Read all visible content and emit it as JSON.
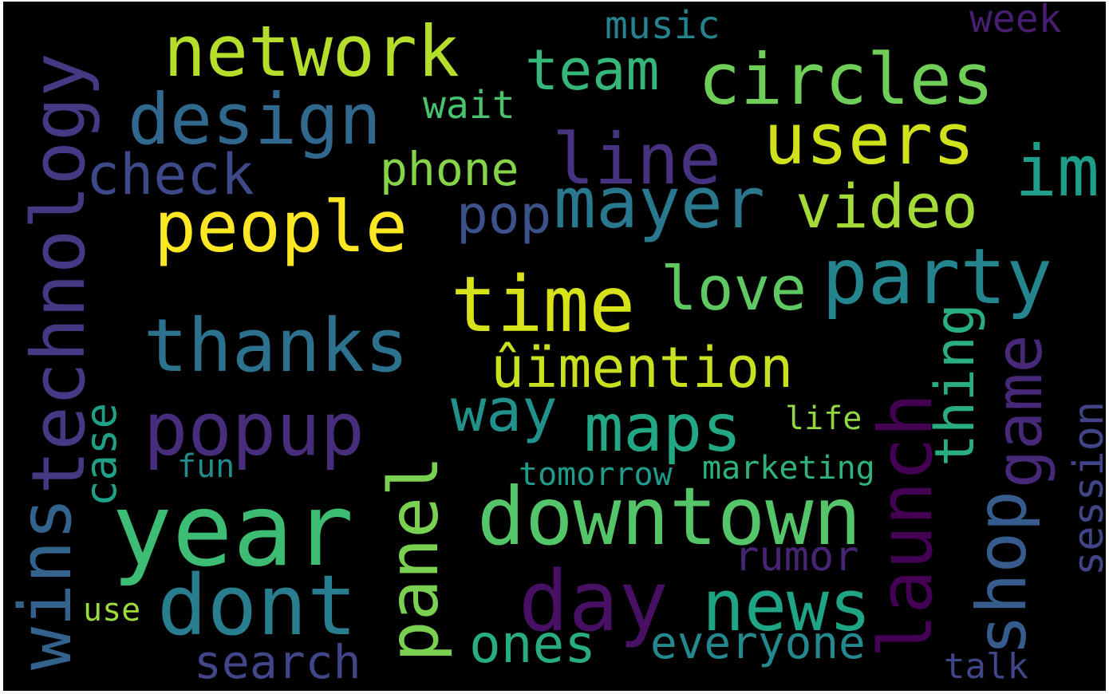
{
  "word_cloud": {
    "background_color": "#000000",
    "colormap": "viridis",
    "words": [
      {
        "text": "technology",
        "color": "#443983"
      },
      {
        "text": "network",
        "color": "#b5de2b"
      },
      {
        "text": "design",
        "color": "#31688e"
      },
      {
        "text": "circles",
        "color": "#6ece58"
      },
      {
        "text": "team",
        "color": "#35b779"
      },
      {
        "text": "music",
        "color": "#26828e"
      },
      {
        "text": "week",
        "color": "#481f70"
      },
      {
        "text": "users",
        "color": "#d0e11c"
      },
      {
        "text": "line",
        "color": "#46327e"
      },
      {
        "text": "im",
        "color": "#1f9e89"
      },
      {
        "text": "check",
        "color": "#3e4989"
      },
      {
        "text": "phone",
        "color": "#86d549"
      },
      {
        "text": "wait",
        "color": "#4ac16d"
      },
      {
        "text": "people",
        "color": "#fde725"
      },
      {
        "text": "mayer",
        "color": "#2a788e"
      },
      {
        "text": "video",
        "color": "#a5db36"
      },
      {
        "text": "pop",
        "color": "#3b528b"
      },
      {
        "text": "party",
        "color": "#25858e"
      },
      {
        "text": "love",
        "color": "#5ec962"
      },
      {
        "text": "time",
        "color": "#d8e219"
      },
      {
        "text": "thanks",
        "color": "#2c728e"
      },
      {
        "text": "ûïmention",
        "color": "#c8e020"
      },
      {
        "text": "launch",
        "color": "#440154"
      },
      {
        "text": "popup",
        "color": "#472d7b"
      },
      {
        "text": "way",
        "color": "#21918c"
      },
      {
        "text": "maps",
        "color": "#22a884"
      },
      {
        "text": "thing",
        "color": "#29af7f"
      },
      {
        "text": "game",
        "color": "#482878"
      },
      {
        "text": "case",
        "color": "#1fa187"
      },
      {
        "text": "life",
        "color": "#90d743"
      },
      {
        "text": "session",
        "color": "#414487"
      },
      {
        "text": "wins",
        "color": "#33638d"
      },
      {
        "text": "fun",
        "color": "#228c8d"
      },
      {
        "text": "tomorrow",
        "color": "#1e9b8a"
      },
      {
        "text": "marketing",
        "color": "#2eb37c"
      },
      {
        "text": "year",
        "color": "#3dbc74"
      },
      {
        "text": "downtown",
        "color": "#54c568"
      },
      {
        "text": "panel",
        "color": "#7ad151"
      },
      {
        "text": "shop",
        "color": "#365c8d"
      },
      {
        "text": "rumor",
        "color": "#482475"
      },
      {
        "text": "dont",
        "color": "#287d8e"
      },
      {
        "text": "day",
        "color": "#471063"
      },
      {
        "text": "news",
        "color": "#20a486"
      },
      {
        "text": "use",
        "color": "#9bd93c"
      },
      {
        "text": "ones",
        "color": "#27ad81"
      },
      {
        "text": "everyone",
        "color": "#23898e"
      },
      {
        "text": "search",
        "color": "#404688"
      },
      {
        "text": "talk",
        "color": "#3f4788"
      }
    ]
  }
}
